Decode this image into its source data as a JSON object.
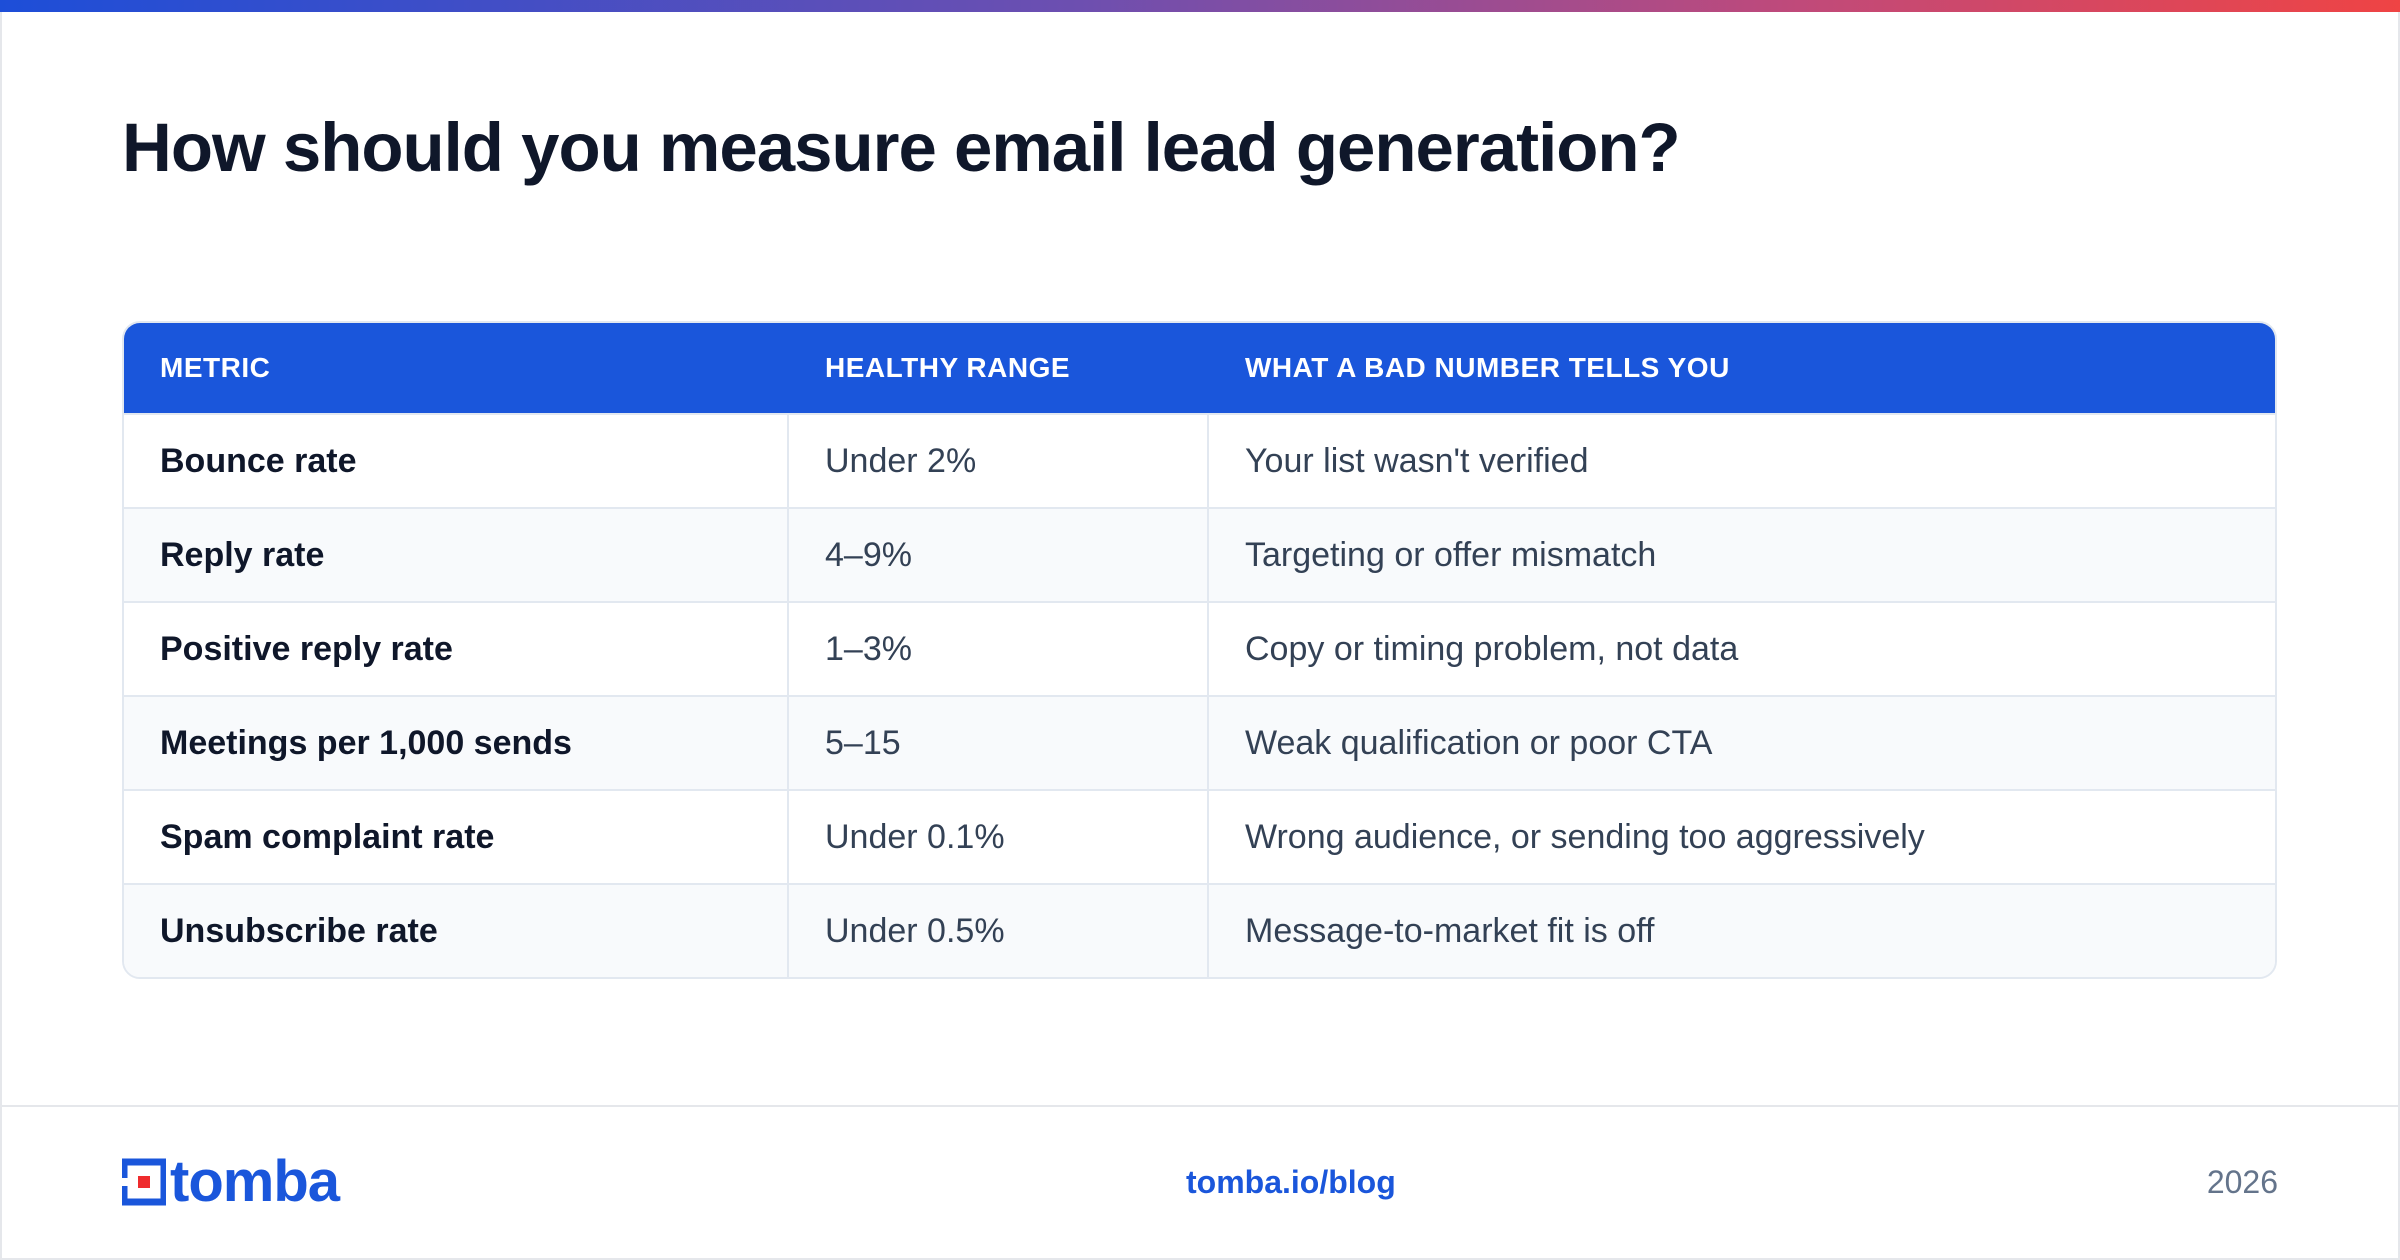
{
  "title": "How should you measure email lead generation?",
  "table": {
    "headers": [
      "METRIC",
      "HEALTHY RANGE",
      "WHAT A BAD NUMBER TELLS YOU"
    ],
    "rows": [
      {
        "metric": "Bounce rate",
        "range": "Under 2%",
        "meaning": "Your list wasn't verified"
      },
      {
        "metric": "Reply rate",
        "range": "4–9%",
        "meaning": "Targeting or offer mismatch"
      },
      {
        "metric": "Positive reply rate",
        "range": "1–3%",
        "meaning": "Copy or timing problem, not data"
      },
      {
        "metric": "Meetings per 1,000 sends",
        "range": "5–15",
        "meaning": "Weak qualification or poor CTA"
      },
      {
        "metric": "Spam complaint rate",
        "range": "Under 0.1%",
        "meaning": "Wrong audience, or sending too aggressively"
      },
      {
        "metric": "Unsubscribe rate",
        "range": "Under 0.5%",
        "meaning": "Message-to-market fit is off"
      }
    ]
  },
  "footer": {
    "logo_text": "tomba",
    "link": "tomba.io/blog",
    "year": "2026"
  },
  "colors": {
    "accent": "#1a56db",
    "logo_red": "#ef2b2d",
    "gradient_start": "#1d4ed8",
    "gradient_end": "#ef4444"
  }
}
